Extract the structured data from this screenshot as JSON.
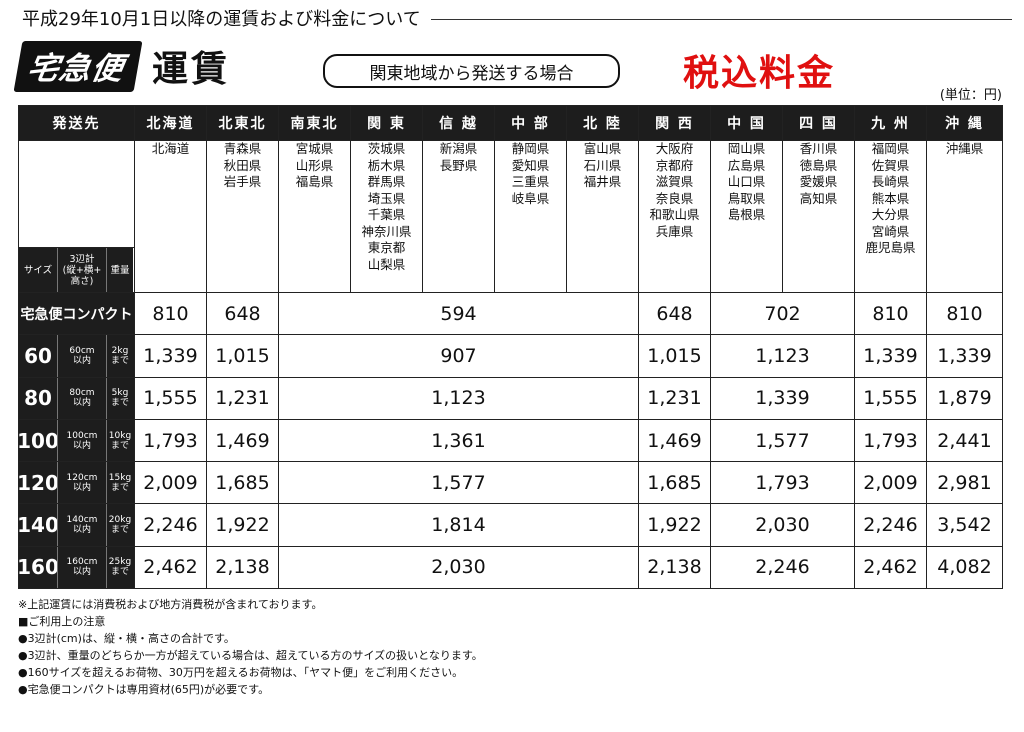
{
  "heading": "平成29年10月1日以降の運賃および料金について",
  "brand_badge": "宅急便",
  "brand_title": "運賃",
  "region_label": "関東地域から発送する場合",
  "tax_label": "税込料金",
  "unit_label": "(単位：円)",
  "table": {
    "corner_label": "発送先",
    "columns": [
      {
        "name": "北海道",
        "prefs": [
          "北海道"
        ]
      },
      {
        "name": "北東北",
        "prefs": [
          "青森県",
          "秋田県",
          "岩手県"
        ]
      },
      {
        "name": "南東北",
        "prefs": [
          "宮城県",
          "山形県",
          "福島県"
        ]
      },
      {
        "name": "関 東",
        "prefs": [
          "茨城県",
          "栃木県",
          "群馬県",
          "埼玉県",
          "千葉県",
          "神奈川県",
          "東京都",
          "山梨県"
        ]
      },
      {
        "name": "信 越",
        "prefs": [
          "新潟県",
          "長野県"
        ]
      },
      {
        "name": "中 部",
        "prefs": [
          "静岡県",
          "愛知県",
          "三重県",
          "岐阜県"
        ]
      },
      {
        "name": "北 陸",
        "prefs": [
          "富山県",
          "石川県",
          "福井県"
        ]
      },
      {
        "name": "関 西",
        "prefs": [
          "大阪府",
          "京都府",
          "滋賀県",
          "奈良県",
          "和歌山県",
          "兵庫県"
        ]
      },
      {
        "name": "中 国",
        "prefs": [
          "岡山県",
          "広島県",
          "山口県",
          "鳥取県",
          "島根県"
        ]
      },
      {
        "name": "四 国",
        "prefs": [
          "香川県",
          "徳島県",
          "愛媛県",
          "高知県"
        ]
      },
      {
        "name": "九 州",
        "prefs": [
          "福岡県",
          "佐賀県",
          "長崎県",
          "熊本県",
          "大分県",
          "宮崎県",
          "鹿児島県"
        ]
      },
      {
        "name": "沖 縄",
        "prefs": [
          "沖縄県"
        ]
      }
    ],
    "size_header": {
      "size": "サイズ",
      "dim": "3辺計\n(縦+横+\n高さ)",
      "weight": "重量"
    },
    "compact": {
      "label": "宅急便コンパクト",
      "prices": [
        "810",
        "648",
        "594",
        "648",
        "702",
        "810",
        "810"
      ]
    },
    "rows": [
      {
        "size": "60",
        "dim": "60cm\n以内",
        "weight": "2kg\nまで",
        "prices": [
          "1,339",
          "1,015",
          "907",
          "1,015",
          "1,123",
          "1,339",
          "1,339"
        ]
      },
      {
        "size": "80",
        "dim": "80cm\n以内",
        "weight": "5kg\nまで",
        "prices": [
          "1,555",
          "1,231",
          "1,123",
          "1,231",
          "1,339",
          "1,555",
          "1,879"
        ]
      },
      {
        "size": "100",
        "dim": "100cm\n以内",
        "weight": "10kg\nまで",
        "prices": [
          "1,793",
          "1,469",
          "1,361",
          "1,469",
          "1,577",
          "1,793",
          "2,441"
        ]
      },
      {
        "size": "120",
        "dim": "120cm\n以内",
        "weight": "15kg\nまで",
        "prices": [
          "2,009",
          "1,685",
          "1,577",
          "1,685",
          "1,793",
          "2,009",
          "2,981"
        ]
      },
      {
        "size": "140",
        "dim": "140cm\n以内",
        "weight": "20kg\nまで",
        "prices": [
          "2,246",
          "1,922",
          "1,814",
          "1,922",
          "2,030",
          "2,246",
          "3,542"
        ]
      },
      {
        "size": "160",
        "dim": "160cm\n以内",
        "weight": "25kg\nまで",
        "prices": [
          "2,462",
          "2,138",
          "2,030",
          "2,138",
          "2,246",
          "2,462",
          "4,082"
        ]
      }
    ]
  },
  "notes": [
    "※上記運賃には消費税および地方消費税が含まれております。",
    "■ご利用上の注意",
    "●3辺計(cm)は、縦・横・高さの合計です。",
    "●3辺計、重量のどちらか一方が超えている場合は、超えている方のサイズの扱いとなります。",
    "●160サイズを超えるお荷物、30万円を超えるお荷物は、「ヤマト便」をご利用ください。",
    "●宅急便コンパクトは専用資材(65円)が必要です。"
  ]
}
